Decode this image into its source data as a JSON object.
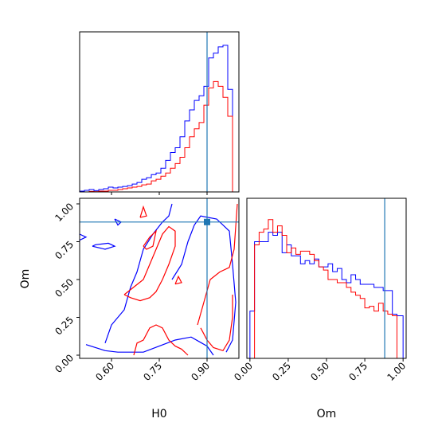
{
  "chart_data": [
    {
      "type": "histogram",
      "panel": "H0 marginal",
      "xlabel": "",
      "ylabel": "",
      "xlim": [
        0.5,
        1.0
      ],
      "x_ticks": [
        0.6,
        0.75,
        0.9
      ],
      "truth": 0.9,
      "colors": {
        "blue": "#0000ff",
        "red": "#ff0000",
        "truth": "#1f77b4"
      },
      "bin_edges": [
        0.5,
        0.515,
        0.53,
        0.545,
        0.56,
        0.575,
        0.59,
        0.605,
        0.62,
        0.635,
        0.65,
        0.665,
        0.68,
        0.695,
        0.71,
        0.725,
        0.74,
        0.755,
        0.77,
        0.785,
        0.8,
        0.815,
        0.83,
        0.845,
        0.86,
        0.875,
        0.89,
        0.905,
        0.92,
        0.935,
        0.95,
        0.965,
        0.98,
        0.995
      ],
      "series": [
        {
          "color": "blue",
          "values": [
            0.5,
            1,
            1.5,
            0.8,
            1.5,
            2,
            3,
            2.5,
            3,
            3.5,
            4,
            5,
            6,
            8,
            9,
            11,
            12,
            15,
            20,
            25,
            28,
            35,
            45,
            52,
            58,
            61,
            67,
            85,
            88,
            92,
            93,
            65,
            0
          ]
        },
        {
          "color": "red",
          "values": [
            0,
            0,
            0.3,
            0.2,
            0.5,
            0.5,
            1,
            1,
            1.5,
            2,
            2.5,
            3,
            3.5,
            4.5,
            5,
            7,
            8,
            10,
            12,
            15,
            18,
            22,
            28,
            35,
            40,
            44,
            55,
            66,
            70,
            67,
            60,
            48,
            0
          ]
        }
      ]
    },
    {
      "type": "contour",
      "panel": "H0 vs Om",
      "xlabel": "H0",
      "ylabel": "Om",
      "xlim": [
        0.5,
        1.0
      ],
      "ylim": [
        0.0,
        1.0
      ],
      "x_ticks": [
        0.6,
        0.75,
        0.9
      ],
      "x_tick_labels": [
        "0.60",
        "0.75",
        "0.90"
      ],
      "y_ticks": [
        0.0,
        0.25,
        0.5,
        0.75,
        1.0
      ],
      "y_tick_labels": [
        "0.00",
        "0.25",
        "0.50",
        "0.75",
        "1.00"
      ],
      "truth_point": [
        0.9,
        0.88
      ],
      "series": [
        {
          "color": "blue",
          "description_of_levels": "two credible levels",
          "contours": [
            [
              [
                0.52,
                0.07
              ],
              [
                0.58,
                0.03
              ],
              [
                0.62,
                0.02
              ],
              [
                0.7,
                0.02
              ],
              [
                0.75,
                0.06
              ],
              [
                0.8,
                0.1
              ],
              [
                0.85,
                0.12
              ],
              [
                0.9,
                0.06
              ],
              [
                0.92,
                0.0
              ]
            ],
            [
              [
                0.58,
                0.08
              ],
              [
                0.6,
                0.2
              ],
              [
                0.64,
                0.3
              ],
              [
                0.66,
                0.45
              ],
              [
                0.68,
                0.55
              ],
              [
                0.7,
                0.7
              ],
              [
                0.73,
                0.8
              ],
              [
                0.76,
                0.88
              ],
              [
                0.78,
                0.92
              ],
              [
                0.79,
                1.0
              ]
            ],
            [
              [
                0.79,
                0.5
              ],
              [
                0.82,
                0.6
              ],
              [
                0.84,
                0.75
              ],
              [
                0.86,
                0.86
              ],
              [
                0.88,
                0.92
              ],
              [
                0.93,
                0.9
              ],
              [
                0.97,
                0.82
              ],
              [
                0.98,
                0.6
              ],
              [
                0.99,
                0.35
              ],
              [
                0.98,
                0.1
              ],
              [
                0.96,
                0.02
              ]
            ],
            [
              [
                0.54,
                0.72
              ],
              [
                0.58,
                0.7
              ],
              [
                0.61,
                0.72
              ],
              [
                0.59,
                0.74
              ],
              [
                0.55,
                0.73
              ],
              [
                0.54,
                0.72
              ]
            ],
            [
              [
                0.61,
                0.9
              ],
              [
                0.63,
                0.88
              ],
              [
                0.62,
                0.86
              ],
              [
                0.61,
                0.9
              ]
            ],
            [
              [
                0.5,
                0.8
              ],
              [
                0.52,
                0.78
              ],
              [
                0.5,
                0.76
              ]
            ]
          ]
        },
        {
          "color": "red",
          "description_of_levels": "two credible levels",
          "contours": [
            [
              [
                0.67,
                0.0
              ],
              [
                0.68,
                0.08
              ],
              [
                0.7,
                0.1
              ],
              [
                0.72,
                0.18
              ],
              [
                0.74,
                0.2
              ],
              [
                0.76,
                0.18
              ],
              [
                0.78,
                0.1
              ],
              [
                0.8,
                0.06
              ],
              [
                0.82,
                0.04
              ],
              [
                0.84,
                0.0
              ]
            ],
            [
              [
                0.64,
                0.4
              ],
              [
                0.67,
                0.45
              ],
              [
                0.7,
                0.5
              ],
              [
                0.72,
                0.6
              ],
              [
                0.74,
                0.7
              ],
              [
                0.76,
                0.8
              ],
              [
                0.78,
                0.85
              ],
              [
                0.8,
                0.82
              ],
              [
                0.8,
                0.72
              ],
              [
                0.78,
                0.6
              ],
              [
                0.76,
                0.5
              ],
              [
                0.74,
                0.42
              ],
              [
                0.72,
                0.38
              ],
              [
                0.69,
                0.36
              ],
              [
                0.66,
                0.38
              ],
              [
                0.64,
                0.4
              ]
            ],
            [
              [
                0.87,
                0.2
              ],
              [
                0.89,
                0.35
              ],
              [
                0.91,
                0.5
              ],
              [
                0.94,
                0.55
              ],
              [
                0.97,
                0.58
              ],
              [
                0.985,
                0.7
              ],
              [
                0.99,
                0.85
              ],
              [
                0.995,
                1.0
              ]
            ],
            [
              [
                0.88,
                0.18
              ],
              [
                0.9,
                0.1
              ],
              [
                0.92,
                0.05
              ],
              [
                0.95,
                0.03
              ],
              [
                0.97,
                0.1
              ],
              [
                0.98,
                0.25
              ],
              [
                0.98,
                0.4
              ]
            ],
            [
              [
                0.7,
                0.72
              ],
              [
                0.72,
                0.78
              ],
              [
                0.74,
                0.82
              ],
              [
                0.73,
                0.72
              ],
              [
                0.71,
                0.7
              ],
              [
                0.7,
                0.72
              ]
            ],
            [
              [
                0.69,
                0.91
              ],
              [
                0.7,
                0.98
              ],
              [
                0.71,
                0.92
              ],
              [
                0.69,
                0.91
              ]
            ],
            [
              [
                0.8,
                0.47
              ],
              [
                0.81,
                0.52
              ],
              [
                0.82,
                0.48
              ],
              [
                0.8,
                0.47
              ]
            ]
          ]
        }
      ]
    },
    {
      "type": "histogram",
      "panel": "Om marginal",
      "xlabel": "Om",
      "xlim": [
        0.0,
        1.0
      ],
      "x_ticks": [
        0.0,
        0.25,
        0.5,
        0.75,
        1.0
      ],
      "x_tick_labels": [
        "0.00",
        "0.25",
        "0.50",
        "0.75",
        "1.00"
      ],
      "truth": 0.88,
      "bin_edges": [
        0.0,
        0.03,
        0.06,
        0.09,
        0.12,
        0.15,
        0.18,
        0.21,
        0.24,
        0.27,
        0.3,
        0.33,
        0.36,
        0.39,
        0.42,
        0.45,
        0.48,
        0.51,
        0.54,
        0.57,
        0.6,
        0.63,
        0.66,
        0.69,
        0.72,
        0.75,
        0.78,
        0.81,
        0.84,
        0.87,
        0.9,
        0.93,
        0.96,
        1.0
      ],
      "series": [
        {
          "color": "blue",
          "values": [
            30,
            74,
            74,
            74,
            80,
            78,
            80,
            67,
            72,
            65,
            65,
            60,
            62,
            60,
            63,
            58,
            58,
            60,
            55,
            57,
            50,
            48,
            53,
            50,
            47,
            47,
            47,
            45,
            45,
            43,
            43,
            28,
            27
          ]
        },
        {
          "color": "red",
          "values": [
            0,
            72,
            80,
            82,
            88,
            80,
            84,
            78,
            67,
            70,
            66,
            68,
            68,
            66,
            62,
            58,
            56,
            50,
            50,
            48,
            48,
            45,
            42,
            40,
            38,
            32,
            33,
            30,
            35,
            30,
            28,
            27,
            0
          ]
        }
      ]
    }
  ]
}
